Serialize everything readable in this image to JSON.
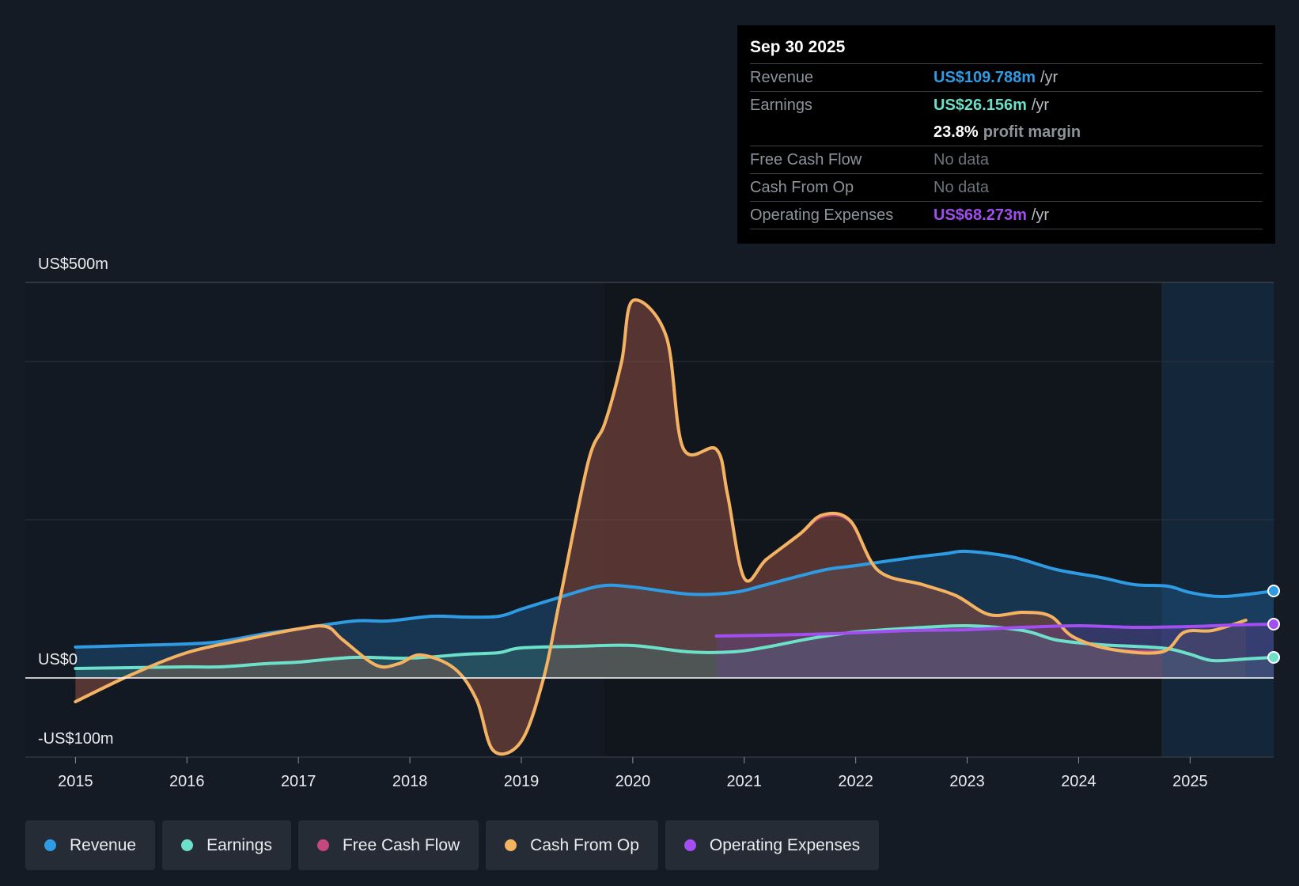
{
  "tooltip": {
    "date": "Sep 30 2025",
    "revenue": {
      "label": "Revenue",
      "value": "US$109.788m",
      "unit": "/yr",
      "color": "#2f9be3"
    },
    "earnings": {
      "label": "Earnings",
      "value": "US$26.156m",
      "unit": "/yr",
      "color": "#6de0c9"
    },
    "margin": {
      "value": "23.8%",
      "text": "profit margin"
    },
    "fcf": {
      "label": "Free Cash Flow",
      "value": "No data"
    },
    "cfo": {
      "label": "Cash From Op",
      "value": "No data"
    },
    "opex": {
      "label": "Operating Expenses",
      "value": "US$68.273m",
      "unit": "/yr",
      "color": "#a24ef0"
    }
  },
  "legend": [
    {
      "label": "Revenue",
      "color": "#2f9be3"
    },
    {
      "label": "Earnings",
      "color": "#6de0c9"
    },
    {
      "label": "Free Cash Flow",
      "color": "#c4477f"
    },
    {
      "label": "Cash From Op",
      "color": "#f2b461"
    },
    {
      "label": "Operating Expenses",
      "color": "#a24ef0"
    }
  ],
  "chart_data": {
    "type": "line",
    "title": "",
    "y_axis_labels": {
      "top": "US$500m",
      "zero": "US$0",
      "bottom": "-US$100m"
    },
    "ylim": [
      -100,
      500
    ],
    "xlim": [
      2014.55,
      2025.75
    ],
    "gridlines": [
      500,
      400,
      200
    ],
    "forecast_start": 2024.75,
    "x_ticks": [
      "2015",
      "2016",
      "2017",
      "2018",
      "2019",
      "2020",
      "2021",
      "2022",
      "2023",
      "2024",
      "2025"
    ],
    "series": [
      {
        "name": "Revenue",
        "color": "#2f9be3",
        "points": [
          [
            2015.0,
            39
          ],
          [
            2015.5,
            41
          ],
          [
            2016.0,
            43
          ],
          [
            2016.3,
            46
          ],
          [
            2016.7,
            56
          ],
          [
            2017.0,
            62
          ],
          [
            2017.5,
            72
          ],
          [
            2017.8,
            72
          ],
          [
            2018.2,
            78
          ],
          [
            2018.5,
            77
          ],
          [
            2018.8,
            78
          ],
          [
            2019.0,
            87
          ],
          [
            2019.3,
            100
          ],
          [
            2019.7,
            116
          ],
          [
            2020.0,
            115
          ],
          [
            2020.5,
            106
          ],
          [
            2020.9,
            108
          ],
          [
            2021.2,
            118
          ],
          [
            2021.7,
            136
          ],
          [
            2022.0,
            142
          ],
          [
            2022.5,
            152
          ],
          [
            2022.8,
            157
          ],
          [
            2023.0,
            160
          ],
          [
            2023.4,
            153
          ],
          [
            2023.8,
            137
          ],
          [
            2024.2,
            127
          ],
          [
            2024.5,
            118
          ],
          [
            2024.8,
            116
          ],
          [
            2025.0,
            108
          ],
          [
            2025.3,
            103
          ],
          [
            2025.75,
            110
          ]
        ]
      },
      {
        "name": "Earnings",
        "color": "#6de0c9",
        "points": [
          [
            2015.0,
            12
          ],
          [
            2015.5,
            13
          ],
          [
            2016.0,
            14
          ],
          [
            2016.3,
            14
          ],
          [
            2016.7,
            18
          ],
          [
            2017.0,
            20
          ],
          [
            2017.5,
            26
          ],
          [
            2018.0,
            25
          ],
          [
            2018.5,
            30
          ],
          [
            2018.8,
            32
          ],
          [
            2019.0,
            38
          ],
          [
            2019.5,
            40
          ],
          [
            2020.0,
            41
          ],
          [
            2020.5,
            33
          ],
          [
            2020.9,
            33
          ],
          [
            2021.2,
            39
          ],
          [
            2021.6,
            50
          ],
          [
            2022.0,
            58
          ],
          [
            2022.5,
            63
          ],
          [
            2023.0,
            66
          ],
          [
            2023.5,
            60
          ],
          [
            2023.8,
            48
          ],
          [
            2024.2,
            42
          ],
          [
            2024.5,
            40
          ],
          [
            2024.8,
            37
          ],
          [
            2025.0,
            30
          ],
          [
            2025.2,
            22
          ],
          [
            2025.5,
            24
          ],
          [
            2025.75,
            26
          ]
        ]
      },
      {
        "name": "Free Cash Flow",
        "color": "#c4477f",
        "points": [
          [
            2015.0,
            -30
          ],
          [
            2015.5,
            4
          ],
          [
            2016.0,
            32
          ],
          [
            2016.5,
            48
          ],
          [
            2017.0,
            62
          ],
          [
            2017.25,
            65
          ],
          [
            2017.4,
            48
          ],
          [
            2017.7,
            16
          ],
          [
            2017.9,
            18
          ],
          [
            2018.1,
            29
          ],
          [
            2018.4,
            12
          ],
          [
            2018.6,
            -28
          ],
          [
            2018.75,
            -92
          ],
          [
            2019.0,
            -80
          ],
          [
            2019.2,
            0
          ],
          [
            2019.35,
            102
          ],
          [
            2019.6,
            273
          ],
          [
            2019.75,
            322
          ],
          [
            2019.9,
            400
          ],
          [
            2020.0,
            477
          ],
          [
            2020.3,
            432
          ],
          [
            2020.45,
            291
          ],
          [
            2020.75,
            289
          ],
          [
            2020.85,
            232
          ],
          [
            2021.0,
            126
          ],
          [
            2021.2,
            150
          ],
          [
            2021.5,
            182
          ],
          [
            2021.7,
            204
          ],
          [
            2021.95,
            198
          ],
          [
            2022.2,
            136
          ],
          [
            2022.6,
            118
          ],
          [
            2022.9,
            104
          ],
          [
            2023.2,
            80
          ],
          [
            2023.5,
            83
          ],
          [
            2023.75,
            78
          ],
          [
            2023.95,
            52
          ],
          [
            2024.3,
            36
          ],
          [
            2024.75,
            33
          ]
        ]
      },
      {
        "name": "Cash From Op",
        "color": "#f2b461",
        "points": [
          [
            2015.0,
            -30
          ],
          [
            2015.5,
            4
          ],
          [
            2016.0,
            32
          ],
          [
            2016.5,
            48
          ],
          [
            2017.0,
            62
          ],
          [
            2017.25,
            65
          ],
          [
            2017.4,
            48
          ],
          [
            2017.7,
            16
          ],
          [
            2017.9,
            18
          ],
          [
            2018.1,
            29
          ],
          [
            2018.4,
            12
          ],
          [
            2018.6,
            -28
          ],
          [
            2018.75,
            -92
          ],
          [
            2019.0,
            -80
          ],
          [
            2019.2,
            0
          ],
          [
            2019.35,
            102
          ],
          [
            2019.6,
            273
          ],
          [
            2019.75,
            322
          ],
          [
            2019.9,
            400
          ],
          [
            2020.0,
            477
          ],
          [
            2020.3,
            432
          ],
          [
            2020.45,
            291
          ],
          [
            2020.75,
            289
          ],
          [
            2020.85,
            232
          ],
          [
            2021.0,
            126
          ],
          [
            2021.2,
            150
          ],
          [
            2021.5,
            182
          ],
          [
            2021.7,
            206
          ],
          [
            2021.95,
            199
          ],
          [
            2022.2,
            136
          ],
          [
            2022.6,
            118
          ],
          [
            2022.9,
            104
          ],
          [
            2023.2,
            80
          ],
          [
            2023.5,
            83
          ],
          [
            2023.75,
            78
          ],
          [
            2023.95,
            52
          ],
          [
            2024.3,
            36
          ],
          [
            2024.75,
            33
          ],
          [
            2024.95,
            58
          ],
          [
            2025.2,
            60
          ],
          [
            2025.5,
            73
          ]
        ]
      },
      {
        "name": "Operating Expenses",
        "color": "#a24ef0",
        "points": [
          [
            2020.75,
            53
          ],
          [
            2021.2,
            54
          ],
          [
            2021.8,
            56
          ],
          [
            2022.5,
            60
          ],
          [
            2023.0,
            61
          ],
          [
            2023.5,
            64
          ],
          [
            2024.0,
            66
          ],
          [
            2024.5,
            64
          ],
          [
            2025.0,
            65
          ],
          [
            2025.4,
            67
          ],
          [
            2025.75,
            68
          ]
        ]
      }
    ]
  }
}
